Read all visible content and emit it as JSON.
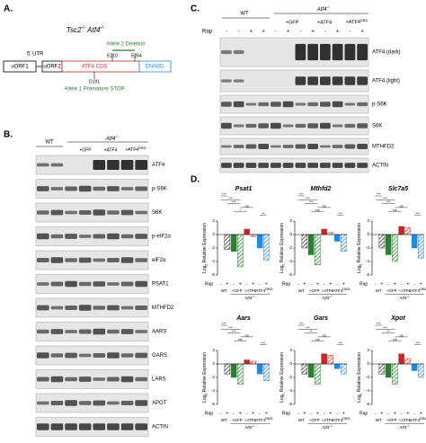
{
  "panel_a": {
    "label": "A.",
    "title": {
      "gene1": "Tsc2",
      "sup1": "-/-",
      "gene2": "Atf4",
      "sup2": "-/-"
    },
    "utr": "5' UTR",
    "uorf1": "uORF1",
    "uorf2": "uORF2",
    "cds": "ATF4 CDS",
    "dnabd": "DNABD",
    "e210": "E210",
    "e264": "E264",
    "deletion": "Allele 2 Deletion",
    "d191": "D191",
    "stop": "Allele 1 Premature STOP"
  },
  "panel_b": {
    "label": "B.",
    "wt": "WT",
    "ko": {
      "gene": "Atf4",
      "sup": "-/-"
    },
    "lanes": [
      "+GFP",
      "+ATF4",
      {
        "main": "+ATF4",
        "sup": "DBD"
      }
    ],
    "rows": [
      "ATF4",
      "p-S6K",
      "S6K",
      "p-eIF2α",
      "eIF2α",
      "PSAT1",
      "MTHFD2",
      "AARS",
      "GARS",
      "LARS",
      "XPOT",
      "ACTIN"
    ]
  },
  "panel_c": {
    "label": "C.",
    "wt": "WT",
    "ko": {
      "gene": "Atf4",
      "sup": "-/-"
    },
    "lanes": [
      "+GFP",
      "+ATF4",
      {
        "main": "+ATF4",
        "sup": "DBD"
      }
    ],
    "rap": "Rap",
    "signs": [
      "-",
      "-",
      "+",
      "+",
      "-",
      "+",
      "-",
      "+",
      "-",
      "+",
      "-",
      "+"
    ],
    "rows": [
      "ATF4 (dark)",
      "ATF4 (light)",
      "p-S6K",
      "S6K",
      "MTHFD2",
      "ACTIN"
    ]
  },
  "panel_d": {
    "label": "D.",
    "ylabel": {
      "main": "Log",
      "sub": "2",
      "rest": " Relative Expression"
    },
    "rap": "Rap",
    "signs": [
      "-",
      "+",
      "-",
      "+",
      "-",
      "+",
      "-",
      "+"
    ],
    "groups": [
      "WT",
      "+GFP",
      "+ATF4",
      {
        "main": "+ATF4",
        "sup": "DBD"
      }
    ],
    "ko": {
      "gene": "Atf4",
      "sup": "-/-"
    },
    "bar_colors": [
      "#ffffff",
      "#333333",
      "#2e7d32",
      "#2e7d32",
      "#c62828",
      "#c62828",
      "#1e88e5",
      "#1e88e5"
    ],
    "hatched": [
      false,
      true,
      false,
      true,
      false,
      true,
      false,
      true
    ],
    "charts": [
      {
        "type": "bar",
        "title": "Psat1",
        "values": [
          0,
          -2.2,
          -2.5,
          -4.8,
          0.8,
          -0.3,
          -2,
          -3.8
        ],
        "ylim": [
          -6,
          2
        ],
        "yticks": [
          -6,
          -4,
          -2,
          0,
          2
        ],
        "annotations": [
          "***",
          "***",
          "***",
          "ns",
          "*",
          "**"
        ]
      },
      {
        "type": "bar",
        "title": "Mthfd2",
        "values": [
          0,
          -2,
          -3,
          -4.5,
          0.8,
          0.3,
          -1,
          -2.5
        ],
        "ylim": [
          -6,
          2
        ],
        "yticks": [
          -6,
          -4,
          -2,
          0,
          2
        ],
        "annotations": [
          "***",
          "***",
          "***",
          "ns",
          "ns",
          "***"
        ]
      },
      {
        "type": "bar",
        "title": "Slc7a5",
        "values": [
          0,
          -2,
          -3,
          -4,
          1.2,
          1,
          -2,
          -3.5
        ],
        "ylim": [
          -6,
          2
        ],
        "yticks": [
          -6,
          -4,
          -2,
          0,
          2
        ],
        "annotations": [
          "***",
          "***",
          "***",
          "ns",
          "ns",
          "***"
        ]
      },
      {
        "type": "bar",
        "title": "Aars",
        "values": [
          0,
          -1.5,
          -2,
          -3,
          0.6,
          0.4,
          -1.5,
          -2.5
        ],
        "ylim": [
          -6,
          2
        ],
        "yticks": [
          -6,
          -4,
          -2,
          0,
          2
        ],
        "annotations": [
          "***",
          "***",
          "***",
          "ns",
          "ns",
          "***"
        ]
      },
      {
        "type": "bar",
        "title": "Gars",
        "values": [
          0,
          -1.5,
          -2,
          -3,
          1.5,
          1.3,
          -0.7,
          -1.5
        ],
        "ylim": [
          -6,
          2
        ],
        "yticks": [
          -6,
          -4,
          -2,
          0,
          2
        ],
        "annotations": [
          "***",
          "***",
          "**",
          "ns",
          "ns",
          "***"
        ]
      },
      {
        "type": "bar",
        "title": "Xpot",
        "values": [
          0,
          -1.5,
          -2,
          -3,
          1.5,
          0.8,
          -1,
          -2
        ],
        "ylim": [
          -6,
          2
        ],
        "yticks": [
          -6,
          -4,
          -2,
          0,
          2
        ],
        "annotations": [
          "***",
          "***",
          "**",
          "ns",
          "ns",
          "***"
        ]
      }
    ]
  }
}
